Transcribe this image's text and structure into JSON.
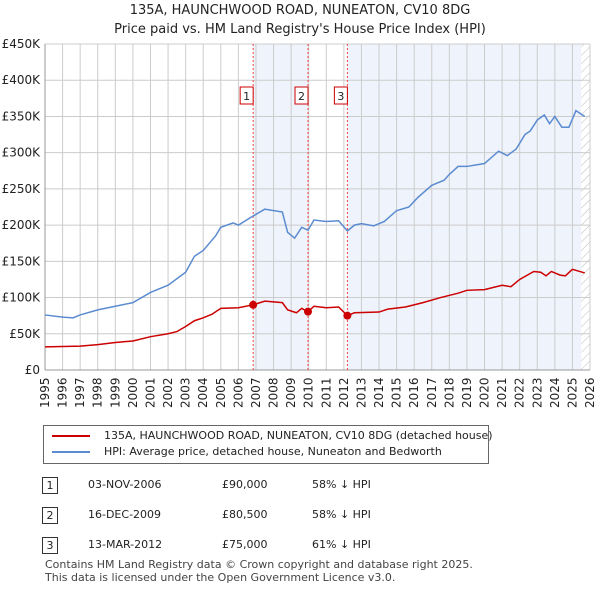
{
  "title": "135A, HAUNCHWOOD ROAD, NUNEATON, CV10 8DG",
  "subtitle": "Price paid vs. HM Land Registry's House Price Index (HPI)",
  "chart_data": {
    "type": "line",
    "title": "135A, HAUNCHWOOD ROAD, NUNEATON, CV10 8DG",
    "subtitle": "Price paid vs. HM Land Registry's House Price Index (HPI)",
    "xlim": [
      1995,
      2026
    ],
    "ylim": [
      0,
      450000
    ],
    "x_ticks": [
      "1995",
      "1996",
      "1997",
      "1998",
      "1999",
      "2000",
      "2001",
      "2002",
      "2003",
      "2004",
      "2005",
      "2006",
      "2007",
      "2008",
      "2009",
      "2010",
      "2011",
      "2012",
      "2013",
      "2014",
      "2015",
      "2016",
      "2017",
      "2018",
      "2019",
      "2020",
      "2021",
      "2022",
      "2023",
      "2024",
      "2025",
      "2026"
    ],
    "y_ticks": [
      "£0",
      "£50K",
      "£100K",
      "£150K",
      "£200K",
      "£250K",
      "£300K",
      "£350K",
      "£400K",
      "£450K"
    ],
    "grid": true,
    "series": [
      {
        "name": "135A, HAUNCHWOOD ROAD, NUNEATON, CV10 8DG (detached house)",
        "color": "#cc0000",
        "x": [
          1995,
          1997,
          1998,
          1999,
          2000,
          2001,
          2002,
          2002.5,
          2003,
          2003.5,
          2004,
          2004.5,
          2005,
          2006,
          2006.84,
          2007.5,
          2008.5,
          2008.8,
          2009.3,
          2009.6,
          2009.96,
          2010.3,
          2011,
          2011.7,
          2012.2,
          2012.6,
          2014,
          2014.5,
          2015.5,
          2016.5,
          2017.5,
          2018.5,
          2019,
          2020,
          2021,
          2021.5,
          2022,
          2022.8,
          2023.2,
          2023.5,
          2023.8,
          2024.3,
          2024.6,
          2025,
          2025.7
        ],
        "y": [
          32000,
          33000,
          35000,
          38000,
          40000,
          46000,
          50000,
          53000,
          60000,
          68000,
          72000,
          77000,
          85000,
          86000,
          90000,
          95000,
          93000,
          83000,
          79000,
          85000,
          80500,
          88000,
          86000,
          87000,
          75000,
          79000,
          80000,
          84000,
          87000,
          93000,
          100000,
          106000,
          110000,
          111000,
          117000,
          115000,
          125000,
          136000,
          135000,
          130000,
          136000,
          131000,
          130000,
          139000,
          134000
        ]
      },
      {
        "name": "HPI: Average price, detached house, Nuneaton and Bedworth",
        "color": "#5b8bd0",
        "x": [
          1995,
          1996,
          1996.6,
          1997,
          1998,
          1999,
          2000,
          2001,
          2002,
          2003,
          2003.5,
          2004,
          2004.7,
          2005,
          2005.7,
          2006,
          2006.8,
          2007.5,
          2008.5,
          2008.8,
          2009.2,
          2009.6,
          2009.96,
          2010.3,
          2011,
          2011.7,
          2012.2,
          2012.6,
          2013,
          2013.7,
          2014.3,
          2015,
          2015.7,
          2016.2,
          2017,
          2017.7,
          2018,
          2018.5,
          2019,
          2020,
          2020.8,
          2021.3,
          2021.8,
          2022.3,
          2022.6,
          2023,
          2023.4,
          2023.7,
          2024,
          2024.4,
          2024.8,
          2025.2,
          2025.7
        ],
        "y": [
          76000,
          73000,
          72000,
          76000,
          83000,
          88000,
          93000,
          107000,
          117000,
          135000,
          157000,
          165000,
          185000,
          197000,
          203000,
          200000,
          212000,
          222000,
          218000,
          190000,
          182000,
          197000,
          193000,
          207000,
          205000,
          206000,
          192000,
          200000,
          202000,
          199000,
          205000,
          220000,
          225000,
          238000,
          255000,
          262000,
          270000,
          281000,
          281000,
          285000,
          302000,
          296000,
          305000,
          325000,
          330000,
          345000,
          352000,
          340000,
          350000,
          335000,
          335000,
          358000,
          350000
        ]
      }
    ],
    "sales": [
      {
        "label": "1",
        "x": 2006.84,
        "y": 90000
      },
      {
        "label": "2",
        "x": 2009.96,
        "y": 80500
      },
      {
        "label": "3",
        "x": 2012.2,
        "y": 75000
      }
    ],
    "shaded_ranges": [
      [
        2006.84,
        2009.96
      ],
      [
        2012.2,
        2025.5
      ]
    ],
    "hatched_from": 2025.5
  },
  "legend": [
    "135A, HAUNCHWOOD ROAD, NUNEATON, CV10 8DG (detached house)",
    "HPI: Average price, detached house, Nuneaton and Bedworth"
  ],
  "transactions": [
    {
      "n": "1",
      "date": "03-NOV-2006",
      "price": "£90,000",
      "hpi": "58% ↓ HPI"
    },
    {
      "n": "2",
      "date": "16-DEC-2009",
      "price": "£80,500",
      "hpi": "58% ↓ HPI"
    },
    {
      "n": "3",
      "date": "13-MAR-2012",
      "price": "£75,000",
      "hpi": "61% ↓ HPI"
    }
  ],
  "footer": [
    "Contains HM Land Registry data © Crown copyright and database right 2025.",
    "This data is licensed under the Open Government Licence v3.0."
  ]
}
